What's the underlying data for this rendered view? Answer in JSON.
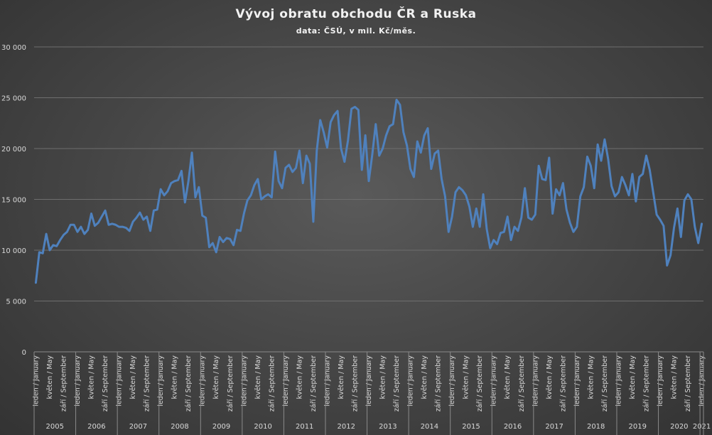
{
  "chart_data": {
    "type": "line",
    "title": "Vývoj obratu obchodu ČR a Ruska",
    "subtitle": "data: ČSÚ, v mil. Kč/měs.",
    "xlabel": "",
    "ylabel": "",
    "ylim": [
      0,
      30000
    ],
    "yticks": [
      0,
      5000,
      10000,
      15000,
      20000,
      25000,
      30000
    ],
    "ytick_labels": [
      "0",
      "5 000",
      "10 000",
      "15 000",
      "20 000",
      "25 000",
      "30 000"
    ],
    "grid": "horizontal",
    "legend": "none",
    "month_labels": [
      "leden / January",
      "květen / May",
      "září / September"
    ],
    "month_labels_2021": [
      "leden / January"
    ],
    "years": [
      "2005",
      "2006",
      "2007",
      "2008",
      "2009",
      "2010",
      "2011",
      "2012",
      "2013",
      "2014",
      "2015",
      "2016",
      "2017",
      "2018",
      "2019",
      "2020",
      "2021"
    ],
    "series": [
      {
        "color": "#4f81bd",
        "values": [
          6800,
          9800,
          9700,
          11600,
          10000,
          10500,
          10400,
          11000,
          11500,
          11800,
          12500,
          12500,
          11800,
          12300,
          11600,
          12000,
          13600,
          12400,
          12700,
          13300,
          13900,
          12500,
          12600,
          12500,
          12300,
          12300,
          12200,
          11900,
          12800,
          13200,
          13700,
          13000,
          13300,
          11900,
          13900,
          14000,
          16000,
          15400,
          15800,
          16600,
          16800,
          16900,
          17800,
          14700,
          16800,
          19600,
          15200,
          16200,
          13400,
          13200,
          10300,
          10700,
          9800,
          11300,
          10800,
          11200,
          11100,
          10500,
          12000,
          11900,
          13600,
          14900,
          15400,
          16400,
          17000,
          15000,
          15300,
          15500,
          15200,
          19700,
          16800,
          16100,
          18100,
          18400,
          17700,
          18100,
          19800,
          16600,
          19300,
          18500,
          12800,
          19800,
          22800,
          21600,
          20100,
          22600,
          23300,
          23700,
          20000,
          18700,
          20800,
          23900,
          24100,
          23800,
          17900,
          21300,
          16800,
          19400,
          22400,
          19300,
          20000,
          21300,
          22200,
          22400,
          24800,
          24300,
          21600,
          20300,
          18000,
          17200,
          20700,
          19600,
          21300,
          22000,
          18000,
          19500,
          19800,
          17000,
          15300,
          11800,
          13300,
          15700,
          16200,
          15900,
          15400,
          14300,
          12300,
          14100,
          12300,
          15500,
          12100,
          10200,
          11000,
          10600,
          11700,
          11800,
          13300,
          11000,
          12300,
          11900,
          13200,
          16100,
          13200,
          13000,
          13500,
          18300,
          17000,
          16900,
          19100,
          13600,
          16000,
          15400,
          16600,
          14000,
          12700,
          11800,
          12300,
          15300,
          16200,
          19200,
          18300,
          16100,
          20400,
          18800,
          20900,
          19000,
          16300,
          15300,
          15700,
          17200,
          16400,
          15400,
          17500,
          14800,
          17200,
          17500,
          19300,
          17900,
          15700,
          13500,
          13000,
          12400,
          8500,
          9500,
          12200,
          14100,
          11300,
          14900,
          15500,
          15000,
          12300,
          10700,
          12600
        ]
      }
    ]
  }
}
